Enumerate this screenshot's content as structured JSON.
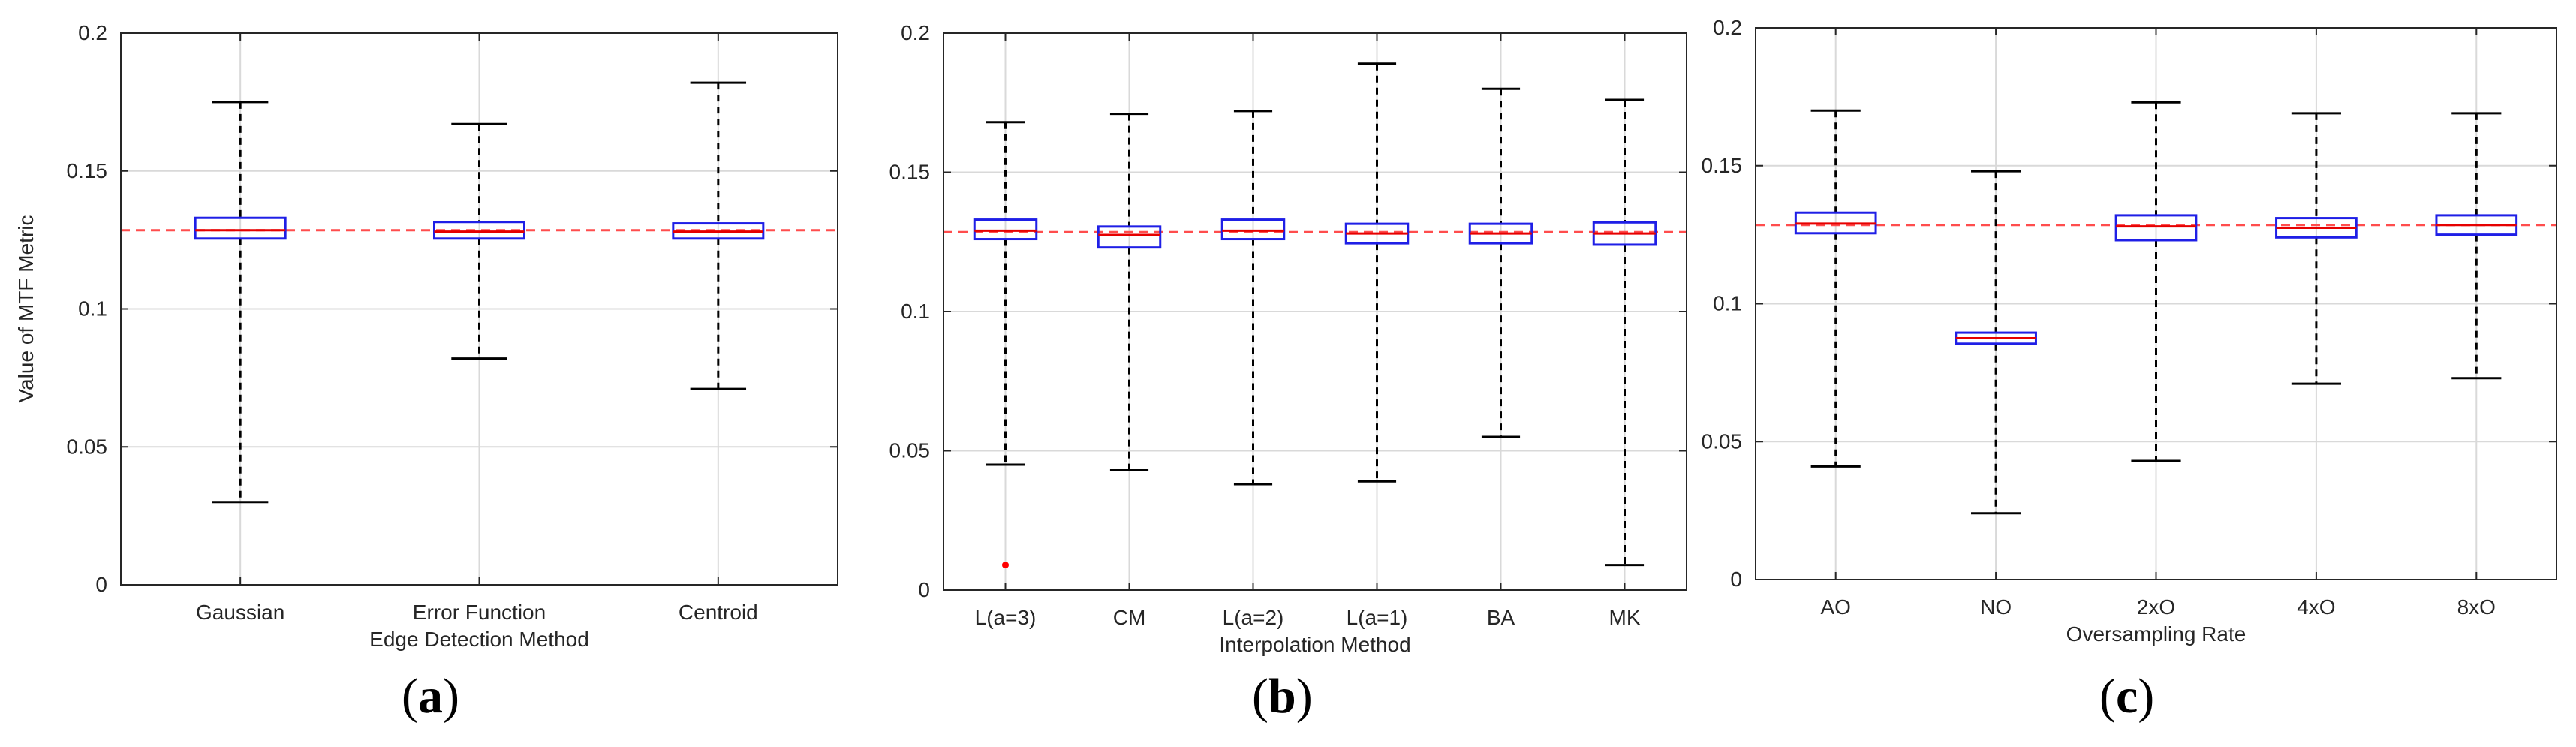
{
  "figure": {
    "captions": [
      {
        "open": "(",
        "letter": "a",
        "close": ")"
      },
      {
        "open": "(",
        "letter": "b",
        "close": ")"
      },
      {
        "open": "(",
        "letter": "c",
        "close": ")"
      }
    ]
  },
  "colors": {
    "box": "#1f1fe6",
    "median": "#e60000",
    "reference": "#ff4d4d",
    "whisker": "#000000",
    "grid": "#d9d9d9",
    "axis": "#262626",
    "outlier": "#ff0000"
  },
  "chart_data": [
    {
      "type": "box",
      "title": "",
      "xlabel": "Edge Detection Method",
      "ylabel": "Value of MTF Metric",
      "ylim": [
        0,
        0.2
      ],
      "yticks": [
        0,
        0.05,
        0.1,
        0.15,
        0.2
      ],
      "ytick_labels": [
        "0",
        "0.05",
        "0.1",
        "0.15",
        "0.2"
      ],
      "grid": true,
      "reference_line": 0.1285,
      "categories": [
        "Gaussian",
        "Error Function",
        "Centroid"
      ],
      "boxes": [
        {
          "min": 0.03,
          "q1": 0.1255,
          "median": 0.1285,
          "q3": 0.133,
          "max": 0.175,
          "outliers": []
        },
        {
          "min": 0.082,
          "q1": 0.1255,
          "median": 0.128,
          "q3": 0.1315,
          "max": 0.167,
          "outliers": []
        },
        {
          "min": 0.071,
          "q1": 0.1255,
          "median": 0.128,
          "q3": 0.131,
          "max": 0.182,
          "outliers": []
        }
      ]
    },
    {
      "type": "box",
      "title": "",
      "xlabel": "Interpolation Method",
      "ylabel": "",
      "ylim": [
        0,
        0.2
      ],
      "yticks": [
        0,
        0.05,
        0.1,
        0.15,
        0.2
      ],
      "ytick_labels": [
        "0",
        "0.05",
        "0.1",
        "0.15",
        "0.2"
      ],
      "grid": true,
      "reference_line": 0.1285,
      "categories": [
        "L(a=3)",
        "CM",
        "L(a=2)",
        "L(a=1)",
        "BA",
        "MK"
      ],
      "boxes": [
        {
          "min": 0.045,
          "q1": 0.126,
          "median": 0.129,
          "q3": 0.133,
          "max": 0.168,
          "outliers": [
            0.009
          ]
        },
        {
          "min": 0.043,
          "q1": 0.123,
          "median": 0.1275,
          "q3": 0.1305,
          "max": 0.171,
          "outliers": []
        },
        {
          "min": 0.038,
          "q1": 0.126,
          "median": 0.129,
          "q3": 0.133,
          "max": 0.172,
          "outliers": []
        },
        {
          "min": 0.039,
          "q1": 0.1245,
          "median": 0.128,
          "q3": 0.1315,
          "max": 0.189,
          "outliers": []
        },
        {
          "min": 0.055,
          "q1": 0.1245,
          "median": 0.128,
          "q3": 0.1315,
          "max": 0.18,
          "outliers": []
        },
        {
          "min": 0.009,
          "q1": 0.124,
          "median": 0.128,
          "q3": 0.132,
          "max": 0.176,
          "outliers": []
        }
      ]
    },
    {
      "type": "box",
      "title": "",
      "xlabel": "Oversampling Rate",
      "ylabel": "",
      "ylim": [
        0,
        0.2
      ],
      "yticks": [
        0,
        0.05,
        0.1,
        0.15,
        0.2
      ],
      "ytick_labels": [
        "0",
        "0.05",
        "0.1",
        "0.15",
        "0.2"
      ],
      "grid": true,
      "reference_line": 0.1285,
      "categories": [
        "AO",
        "NO",
        "2xO",
        "4xO",
        "8xO"
      ],
      "boxes": [
        {
          "min": 0.041,
          "q1": 0.1255,
          "median": 0.129,
          "q3": 0.133,
          "max": 0.17,
          "outliers": []
        },
        {
          "min": 0.024,
          "q1": 0.0855,
          "median": 0.0875,
          "q3": 0.0895,
          "max": 0.148,
          "outliers": []
        },
        {
          "min": 0.043,
          "q1": 0.123,
          "median": 0.128,
          "q3": 0.132,
          "max": 0.173,
          "outliers": []
        },
        {
          "min": 0.071,
          "q1": 0.124,
          "median": 0.1275,
          "q3": 0.131,
          "max": 0.169,
          "outliers": []
        },
        {
          "min": 0.073,
          "q1": 0.125,
          "median": 0.1285,
          "q3": 0.132,
          "max": 0.169,
          "outliers": []
        }
      ]
    }
  ]
}
